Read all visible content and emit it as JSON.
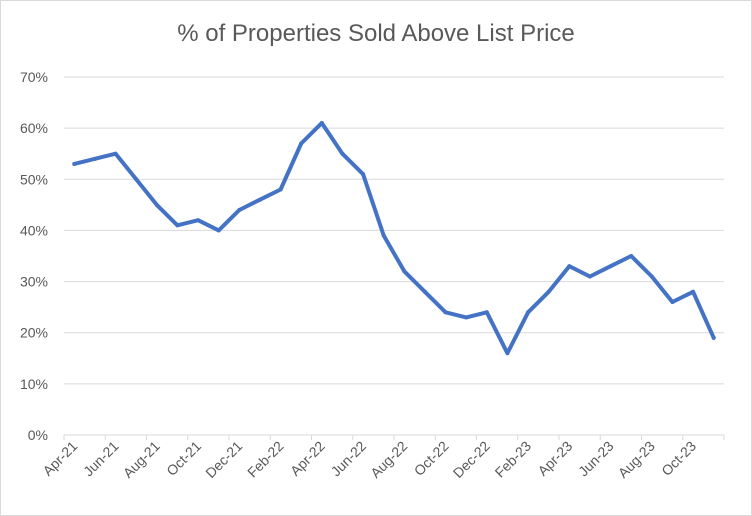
{
  "chart_data": {
    "type": "line",
    "title": "% of Properties Sold Above List Price",
    "xlabel": "",
    "ylabel": "",
    "ylim": [
      0,
      70
    ],
    "y_ticks": [
      "0%",
      "10%",
      "20%",
      "30%",
      "40%",
      "50%",
      "60%",
      "70%"
    ],
    "x_tick_labels": [
      "Apr-21",
      "Jun-21",
      "Aug-21",
      "Oct-21",
      "Dec-21",
      "Feb-22",
      "Apr-22",
      "Jun-22",
      "Aug-22",
      "Oct-22",
      "Dec-22",
      "Feb-23",
      "Apr-23",
      "Jun-23",
      "Aug-23",
      "Oct-23"
    ],
    "grid": true,
    "legend": "none",
    "x": [
      "Apr-21",
      "May-21",
      "Jun-21",
      "Jul-21",
      "Aug-21",
      "Sep-21",
      "Oct-21",
      "Nov-21",
      "Dec-21",
      "Jan-22",
      "Feb-22",
      "Mar-22",
      "Apr-22",
      "May-22",
      "Jun-22",
      "Jul-22",
      "Aug-22",
      "Sep-22",
      "Oct-22",
      "Nov-22",
      "Dec-22",
      "Jan-23",
      "Feb-23",
      "Mar-23",
      "Apr-23",
      "May-23",
      "Jun-23",
      "Jul-23",
      "Aug-23",
      "Sep-23",
      "Oct-23",
      "Nov-23"
    ],
    "series": [
      {
        "color": "#4472c4",
        "values": [
          53,
          54,
          55,
          50,
          45,
          41,
          42,
          40,
          44,
          46,
          48,
          57,
          61,
          55,
          51,
          39,
          32,
          28,
          24,
          23,
          24,
          16,
          24,
          28,
          33,
          31,
          33,
          35,
          31,
          26,
          28,
          19
        ]
      }
    ]
  }
}
